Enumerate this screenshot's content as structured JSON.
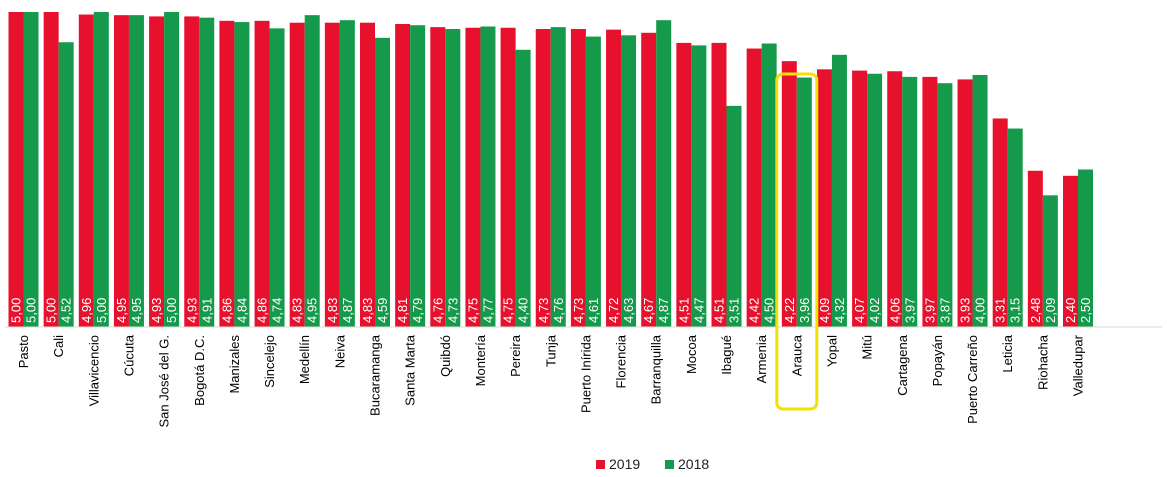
{
  "chart_data": {
    "type": "bar",
    "categories": [
      "Pasto",
      "Cali",
      "Villavicencio",
      "Cúcuta",
      "San José del G.",
      "Bogotá D.C.",
      "Manizales",
      "Sincelejo",
      "Medellín",
      "Neiva",
      "Bucaramanga",
      "Santa Marta",
      "Quibdó",
      "Montería",
      "Pereira",
      "Tunja",
      "Puerto Inírida",
      "Florencia",
      "Barranquilla",
      "Mocoa",
      "Ibagué",
      "Armenia",
      "Arauca",
      "Yopal",
      "Mitú",
      "Cartagena",
      "Popayán",
      "Puerto Carreño",
      "Leticia",
      "Riohacha",
      "Valledupar"
    ],
    "series": [
      {
        "name": "2019",
        "values": [
          5.0,
          5.0,
          4.96,
          4.95,
          4.93,
          4.93,
          4.86,
          4.86,
          4.83,
          4.83,
          4.83,
          4.81,
          4.76,
          4.75,
          4.75,
          4.73,
          4.73,
          4.72,
          4.67,
          4.51,
          4.51,
          4.42,
          4.22,
          4.09,
          4.07,
          4.06,
          3.97,
          3.93,
          3.31,
          2.48,
          2.4
        ]
      },
      {
        "name": "2018",
        "values": [
          5.0,
          4.52,
          5.0,
          4.95,
          5.0,
          4.91,
          4.84,
          4.74,
          4.95,
          4.87,
          4.59,
          4.79,
          4.73,
          4.77,
          4.4,
          4.76,
          4.61,
          4.63,
          4.87,
          4.47,
          3.51,
          4.5,
          3.96,
          4.32,
          4.02,
          3.97,
          3.87,
          4.0,
          3.15,
          2.09,
          2.5
        ]
      }
    ],
    "series_colors": {
      "2019": "#e8112d",
      "2018": "#149a4a"
    },
    "highlight": {
      "category": "Arauca",
      "color": "#f2e200"
    },
    "value_labels": {
      "2019": [
        "5,00",
        "5,00",
        "4,96",
        "4,95",
        "4,93",
        "4,93",
        "4,86",
        "4,86",
        "4,83",
        "4,83",
        "4,83",
        "4,81",
        "4,76",
        "4,75",
        "4,75",
        "4,73",
        "4,73",
        "4,72",
        "4,67",
        "4,51",
        "4,51",
        "4,42",
        "4,22",
        "4,09",
        "4,07",
        "4,06",
        "3,97",
        "3,93",
        "3,31",
        "2,48",
        "2,40"
      ],
      "2018": [
        "5,00",
        "4,52",
        "5,00",
        "4,95",
        "5,00",
        "4,91",
        "4,84",
        "4,74",
        "4,95",
        "4,87",
        "4,59",
        "4,79",
        "4,73",
        "4,77",
        "4,40",
        "4,76",
        "4,61",
        "4,63",
        "4,87",
        "4,47",
        "3,51",
        "4,50",
        "3,96",
        "4,32",
        "4,02",
        "3,97",
        "3,87",
        "4,00",
        "3,15",
        "2,09",
        "2,50"
      ]
    },
    "ylim": [
      0,
      5
    ],
    "legend_position": "bottom-center",
    "grid": false,
    "title": "",
    "xlabel": "",
    "ylabel": ""
  }
}
